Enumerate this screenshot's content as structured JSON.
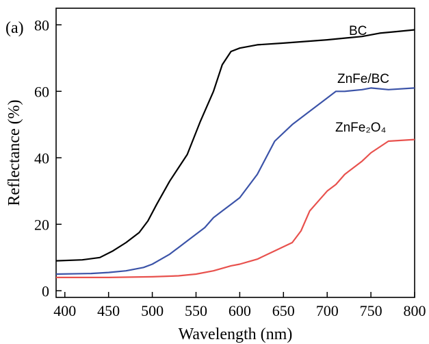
{
  "chart_data": {
    "type": "line",
    "panel_label": "(a)",
    "xlabel": "Wavelength (nm)",
    "ylabel": "Reflectance (%)",
    "xlim": [
      390,
      800
    ],
    "ylim": [
      -2,
      85
    ],
    "x_ticks": [
      400,
      450,
      500,
      550,
      600,
      650,
      700,
      750,
      800
    ],
    "y_ticks": [
      0,
      20,
      40,
      60,
      80
    ],
    "grid": false,
    "legend": "inline labels",
    "series": [
      {
        "name": "BC",
        "color": "#000000",
        "x": [
          390,
          420,
          440,
          455,
          470,
          485,
          495,
          505,
          520,
          540,
          555,
          570,
          580,
          590,
          600,
          610,
          620,
          650,
          700,
          740,
          760,
          780,
          800
        ],
        "y": [
          9,
          9.3,
          10,
          12,
          14.5,
          17.5,
          21,
          26,
          33,
          41,
          51,
          60,
          68,
          72,
          73,
          73.5,
          74,
          74.5,
          75.5,
          76.5,
          77.5,
          78,
          78.5
        ]
      },
      {
        "name": "ZnFe/BC",
        "color": "#3b53a8",
        "x": [
          390,
          430,
          450,
          470,
          490,
          500,
          520,
          530,
          540,
          560,
          570,
          580,
          590,
          600,
          620,
          640,
          660,
          680,
          700,
          710,
          720,
          740,
          750,
          770,
          800
        ],
        "y": [
          5,
          5.2,
          5.5,
          6,
          7,
          8,
          11,
          13,
          15,
          19,
          22,
          24,
          26,
          28,
          35,
          45,
          50,
          54,
          58,
          60,
          60,
          60.5,
          61,
          60.5,
          61
        ]
      },
      {
        "name": "ZnFe₂O₄",
        "color": "#e8514d",
        "x": [
          390,
          450,
          500,
          530,
          550,
          570,
          590,
          600,
          620,
          640,
          660,
          670,
          680,
          690,
          700,
          710,
          720,
          740,
          750,
          770,
          800
        ],
        "y": [
          4,
          4,
          4.2,
          4.5,
          5,
          6,
          7.5,
          8,
          9.5,
          12,
          14.5,
          18,
          24,
          27,
          30,
          32,
          35,
          39,
          41.5,
          45,
          45.5
        ]
      }
    ]
  }
}
